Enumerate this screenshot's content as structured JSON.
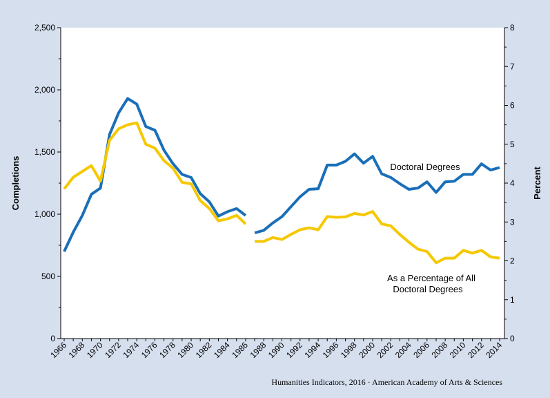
{
  "chart_data": {
    "type": "line",
    "title": "",
    "y_left": {
      "label": "Completions",
      "lim": [
        0,
        2500
      ],
      "ticks": [
        0,
        500,
        1000,
        1500,
        2000,
        2500
      ],
      "tick_labels": [
        "0",
        "500",
        "1,000",
        "1,500",
        "2,000",
        "2,500"
      ]
    },
    "y_right": {
      "label": "Percent",
      "lim": [
        0,
        8
      ],
      "ticks": [
        0,
        1,
        2,
        3,
        4,
        5,
        6,
        7,
        8
      ],
      "tick_labels": [
        "0",
        "1",
        "2",
        "3",
        "4",
        "5",
        "6",
        "7",
        "8"
      ]
    },
    "x": {
      "lim": [
        1966,
        2014
      ],
      "tick_labels": [
        "1966",
        "1968",
        "1970",
        "1972",
        "1974",
        "1976",
        "1978",
        "1980",
        "1982",
        "1984",
        "1986",
        "1988",
        "1990",
        "1992",
        "1994",
        "1996",
        "1998",
        "2000",
        "2002",
        "2004",
        "2006",
        "2008",
        "2010",
        "2012",
        "2014"
      ]
    },
    "series": [
      {
        "name": "Doctoral Degrees",
        "axis": "left",
        "color": "#1a6fb8",
        "segments": [
          {
            "x": [
              1966,
              1967,
              1968,
              1969,
              1970,
              1971,
              1972,
              1973,
              1974,
              1975,
              1976,
              1977,
              1978,
              1979,
              1980,
              1981,
              1982,
              1983,
              1984,
              1985,
              1986
            ],
            "y": [
              700,
              855,
              990,
              1160,
              1210,
              1640,
              1815,
              1930,
              1885,
              1705,
              1675,
              1515,
              1405,
              1320,
              1295,
              1165,
              1100,
              985,
              1020,
              1045,
              990
            ]
          },
          {
            "x": [
              1987,
              1988,
              1989,
              1990,
              1991,
              1992,
              1993,
              1994,
              1995,
              1996,
              1997,
              1998,
              1999,
              2000,
              2001,
              2002,
              2003,
              2004,
              2005,
              2006,
              2007,
              2008,
              2009,
              2010,
              2011,
              2012,
              2013,
              2014
            ],
            "y": [
              850,
              870,
              930,
              980,
              1060,
              1140,
              1200,
              1205,
              1395,
              1395,
              1425,
              1485,
              1410,
              1465,
              1325,
              1295,
              1245,
              1200,
              1210,
              1260,
              1175,
              1260,
              1265,
              1320,
              1320,
              1405,
              1355,
              1375
            ]
          }
        ]
      },
      {
        "name": "As a Percentage of All Doctoral Degrees",
        "axis": "right",
        "color": "#f5c800",
        "segments": [
          {
            "x": [
              1966,
              1967,
              1968,
              1969,
              1970,
              1971,
              1972,
              1973,
              1974,
              1975,
              1976,
              1977,
              1978,
              1979,
              1980,
              1981,
              1982,
              1983,
              1984,
              1985,
              1986
            ],
            "y": [
              3.85,
              4.15,
              4.3,
              4.45,
              4.05,
              5.1,
              5.4,
              5.5,
              5.55,
              5.0,
              4.9,
              4.58,
              4.38,
              4.02,
              3.98,
              3.55,
              3.35,
              3.03,
              3.08,
              3.17,
              2.95
            ]
          },
          {
            "x": [
              1987,
              1988,
              1989,
              1990,
              1991,
              1992,
              1993,
              1994,
              1995,
              1996,
              1997,
              1998,
              1999,
              2000,
              2001,
              2002,
              2003,
              2004,
              2005,
              2006,
              2007,
              2008,
              2009,
              2010,
              2011,
              2012,
              2013,
              2014
            ],
            "y": [
              2.5,
              2.5,
              2.6,
              2.55,
              2.68,
              2.8,
              2.85,
              2.8,
              3.14,
              3.12,
              3.13,
              3.22,
              3.18,
              3.27,
              2.95,
              2.9,
              2.68,
              2.48,
              2.3,
              2.24,
              1.95,
              2.07,
              2.07,
              2.27,
              2.2,
              2.27,
              2.1,
              2.07
            ]
          }
        ]
      }
    ],
    "annotations": [
      "Doctoral Degrees",
      "As a Percentage of All",
      "Doctoral Degrees"
    ]
  },
  "credit": "Humanities Indicators, 2016 · American Academy of Arts & Sciences"
}
